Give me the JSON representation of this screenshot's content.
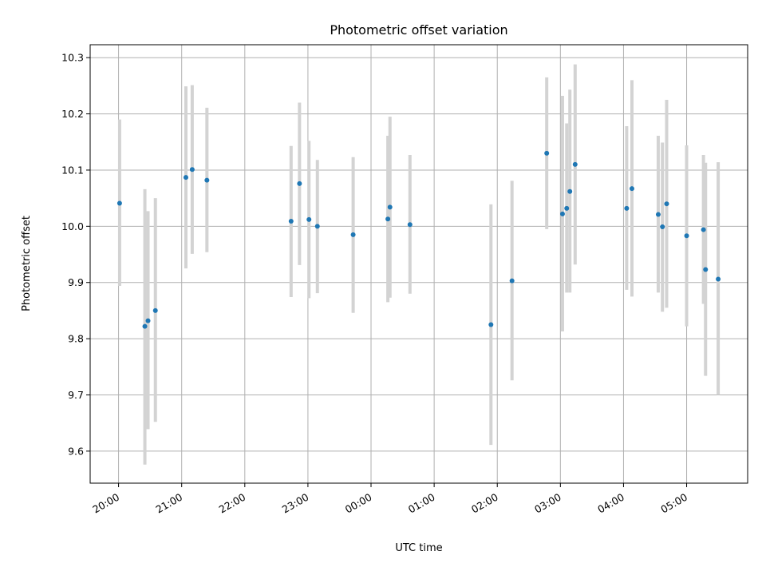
{
  "chart_data": {
    "type": "scatter",
    "title": "Photometric offset variation",
    "xlabel": "UTC time",
    "ylabel": "Photometric offset",
    "x_ticks": [
      "20:00",
      "21:00",
      "22:00",
      "23:00",
      "00:00",
      "01:00",
      "02:00",
      "03:00",
      "04:00",
      "05:00"
    ],
    "y_ticks": [
      "9.6",
      "9.7",
      "9.8",
      "9.9",
      "10.0",
      "10.1",
      "10.2",
      "10.3"
    ],
    "xlim": [
      "19:33",
      "05:58"
    ],
    "ylim": [
      9.543,
      10.323
    ],
    "grid": true,
    "colors": {
      "marker": "#1f77b4",
      "errorbar": "#d3d3d3",
      "grid": "#b0b0b0"
    },
    "points": [
      {
        "time": "20:01",
        "y": 10.041,
        "lo": 9.894,
        "hi": 10.19
      },
      {
        "time": "20:25",
        "y": 9.822,
        "lo": 9.576,
        "hi": 10.066
      },
      {
        "time": "20:28",
        "y": 9.832,
        "lo": 9.639,
        "hi": 10.027
      },
      {
        "time": "20:35",
        "y": 9.85,
        "lo": 9.652,
        "hi": 10.05
      },
      {
        "time": "21:04",
        "y": 10.087,
        "lo": 9.925,
        "hi": 10.249
      },
      {
        "time": "21:10",
        "y": 10.101,
        "lo": 9.951,
        "hi": 10.251
      },
      {
        "time": "21:24",
        "y": 10.082,
        "lo": 9.954,
        "hi": 10.211
      },
      {
        "time": "22:44",
        "y": 10.009,
        "lo": 9.874,
        "hi": 10.143
      },
      {
        "time": "22:52",
        "y": 10.076,
        "lo": 9.931,
        "hi": 10.22
      },
      {
        "time": "23:01",
        "y": 10.012,
        "lo": 9.872,
        "hi": 10.152
      },
      {
        "time": "23:09",
        "y": 10.0,
        "lo": 9.881,
        "hi": 10.118
      },
      {
        "time": "23:43",
        "y": 9.985,
        "lo": 9.846,
        "hi": 10.123
      },
      {
        "time": "00:16",
        "y": 10.013,
        "lo": 9.865,
        "hi": 10.161
      },
      {
        "time": "00:18",
        "y": 10.034,
        "lo": 9.873,
        "hi": 10.195
      },
      {
        "time": "00:37",
        "y": 10.003,
        "lo": 9.88,
        "hi": 10.127
      },
      {
        "time": "01:54",
        "y": 9.825,
        "lo": 9.611,
        "hi": 10.039
      },
      {
        "time": "02:14",
        "y": 9.903,
        "lo": 9.726,
        "hi": 10.081
      },
      {
        "time": "02:47",
        "y": 10.13,
        "lo": 9.995,
        "hi": 10.265
      },
      {
        "time": "03:02",
        "y": 10.022,
        "lo": 9.813,
        "hi": 10.232
      },
      {
        "time": "03:06",
        "y": 10.032,
        "lo": 9.882,
        "hi": 10.183
      },
      {
        "time": "03:09",
        "y": 10.062,
        "lo": 9.882,
        "hi": 10.243
      },
      {
        "time": "03:14",
        "y": 10.11,
        "lo": 9.932,
        "hi": 10.288
      },
      {
        "time": "04:03",
        "y": 10.032,
        "lo": 9.887,
        "hi": 10.178
      },
      {
        "time": "04:08",
        "y": 10.067,
        "lo": 9.875,
        "hi": 10.26
      },
      {
        "time": "04:33",
        "y": 10.021,
        "lo": 9.882,
        "hi": 10.161
      },
      {
        "time": "04:37",
        "y": 9.999,
        "lo": 9.848,
        "hi": 10.149
      },
      {
        "time": "04:41",
        "y": 10.04,
        "lo": 9.855,
        "hi": 10.225
      },
      {
        "time": "05:00",
        "y": 9.983,
        "lo": 9.822,
        "hi": 10.144
      },
      {
        "time": "05:16",
        "y": 9.994,
        "lo": 9.862,
        "hi": 10.127
      },
      {
        "time": "05:18",
        "y": 9.923,
        "lo": 9.734,
        "hi": 10.113
      },
      {
        "time": "05:30",
        "y": 9.906,
        "lo": 9.7,
        "hi": 10.114
      }
    ]
  }
}
